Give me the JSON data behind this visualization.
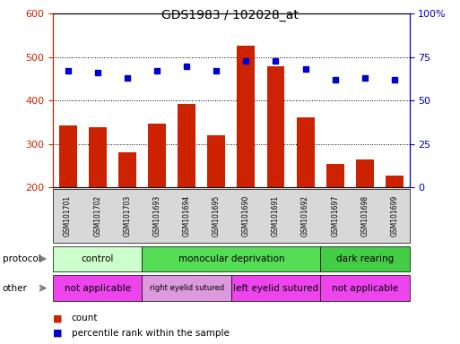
{
  "title": "GDS1983 / 102028_at",
  "samples": [
    "GSM101701",
    "GSM101702",
    "GSM101703",
    "GSM101693",
    "GSM101694",
    "GSM101695",
    "GSM101690",
    "GSM101691",
    "GSM101692",
    "GSM101697",
    "GSM101698",
    "GSM101699"
  ],
  "counts": [
    342,
    338,
    280,
    348,
    393,
    320,
    527,
    480,
    362,
    254,
    265,
    228
  ],
  "percentile_ranks": [
    67,
    66,
    63,
    67,
    70,
    67,
    73,
    73,
    68,
    62,
    63,
    62
  ],
  "ylim_left": [
    200,
    600
  ],
  "ylim_right": [
    0,
    100
  ],
  "yticks_left": [
    200,
    300,
    400,
    500,
    600
  ],
  "yticks_right": [
    0,
    25,
    50,
    75,
    100
  ],
  "bar_color": "#cc2200",
  "dot_color": "#0000cc",
  "protocol_labels": [
    {
      "text": "control",
      "start": 0,
      "end": 3,
      "color": "#ccffcc"
    },
    {
      "text": "monocular deprivation",
      "start": 3,
      "end": 9,
      "color": "#55dd55"
    },
    {
      "text": "dark rearing",
      "start": 9,
      "end": 12,
      "color": "#44cc44"
    }
  ],
  "other_labels": [
    {
      "text": "not applicable",
      "start": 0,
      "end": 3,
      "color": "#ee44ee"
    },
    {
      "text": "right eyelid sutured",
      "start": 3,
      "end": 6,
      "color": "#dd99dd"
    },
    {
      "text": "left eyelid sutured",
      "start": 6,
      "end": 9,
      "color": "#ee44ee"
    },
    {
      "text": "not applicable",
      "start": 9,
      "end": 12,
      "color": "#ee44ee"
    }
  ],
  "background_color": "#ffffff",
  "grid_color": "#000000",
  "tick_label_color_left": "#cc2200",
  "tick_label_color_right": "#0000cc",
  "xtick_bg_color": "#d8d8d8",
  "xlim": [
    -0.5,
    11.5
  ]
}
